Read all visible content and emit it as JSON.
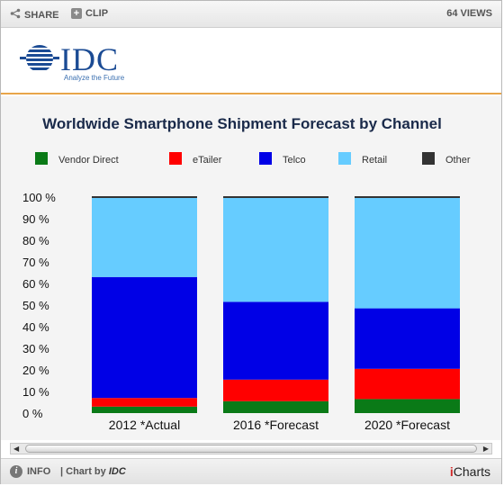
{
  "toolbar": {
    "share_label": "SHARE",
    "clip_label": "CLIP",
    "views_label": "64 VIEWS"
  },
  "logo": {
    "name": "IDC",
    "tagline": "Analyze the Future"
  },
  "footer": {
    "info_label": "INFO",
    "chart_by_prefix": "| Chart by",
    "chart_by_source": "IDC",
    "brand_i": "i",
    "brand_rest": "Charts"
  },
  "colors": {
    "accent_rule": "#e8a54a",
    "logo_blue": "#1b4b94"
  },
  "chart_data": {
    "type": "bar",
    "stacked": true,
    "title": "Worldwide Smartphone Shipment Forecast by Channel",
    "xlabel": "",
    "ylabel": "",
    "ylim": [
      0,
      100
    ],
    "yticks": [
      "0 %",
      "10 %",
      "20 %",
      "30 %",
      "40 %",
      "50 %",
      "60 %",
      "70 %",
      "80 %",
      "90 %",
      "100 %"
    ],
    "categories": [
      "2012 *Actual",
      "2016 *Forecast",
      "2020 *Forecast"
    ],
    "legend_position": "top",
    "series": [
      {
        "name": "Vendor Direct",
        "color": "#0a7a17",
        "values": [
          3,
          5.5,
          6.5
        ]
      },
      {
        "name": "eTailer",
        "color": "#ff0000",
        "values": [
          4,
          10,
          14
        ]
      },
      {
        "name": "Telco",
        "color": "#0000e6",
        "values": [
          56,
          36,
          28
        ]
      },
      {
        "name": "Retail",
        "color": "#66ccff",
        "values": [
          37,
          48.5,
          51.5
        ]
      },
      {
        "name": "Other",
        "color": "#333333",
        "values": [
          0,
          0,
          0
        ]
      }
    ]
  }
}
